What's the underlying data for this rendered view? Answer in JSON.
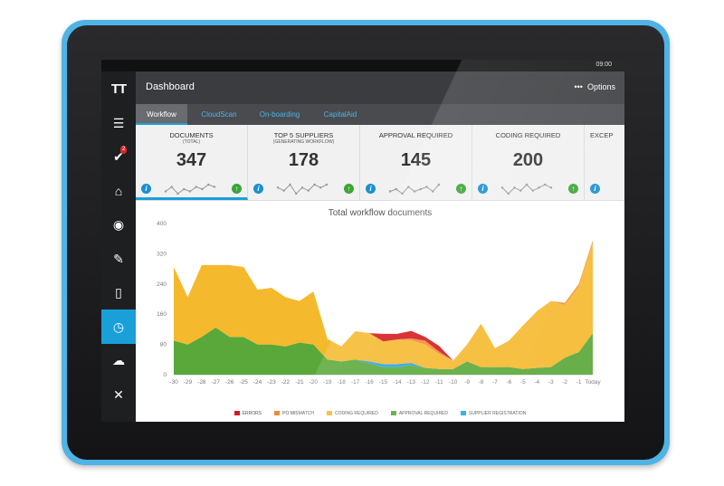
{
  "status": {
    "time": "09:00"
  },
  "header": {
    "title": "Dashboard",
    "options_label": "Options",
    "menu_glyph": "•••"
  },
  "sidebar": {
    "logo": "TT",
    "notification_count": "2",
    "items": [
      {
        "icon": "rss-icon",
        "glyph": "☰"
      },
      {
        "icon": "tasks-check-icon",
        "glyph": "✔"
      },
      {
        "icon": "home-icon",
        "glyph": "⌂"
      },
      {
        "icon": "globe-icon",
        "glyph": "◉"
      },
      {
        "icon": "pencil-icon",
        "glyph": "✎"
      },
      {
        "icon": "document-icon",
        "glyph": "▯"
      },
      {
        "icon": "dashboard-gauge-icon",
        "glyph": "◷"
      },
      {
        "icon": "cloud-upload-icon",
        "glyph": "☁"
      },
      {
        "icon": "tools-icon",
        "glyph": "✕"
      }
    ]
  },
  "tabs": [
    {
      "label": "Workflow",
      "active": true
    },
    {
      "label": "CloudScan",
      "active": false
    },
    {
      "label": "On-boarding",
      "active": false
    },
    {
      "label": "CapitalAid",
      "active": false
    }
  ],
  "kpis": [
    {
      "label": "DOCUMENTS",
      "sub": "(TOTAL)",
      "value": "347",
      "spark": [
        4,
        6,
        3,
        5,
        4,
        6,
        5,
        7,
        6
      ]
    },
    {
      "label": "TOP 5 SUPPLIERS",
      "sub": "(GENERATING WORKFLOW)",
      "value": "178",
      "spark": [
        5,
        4,
        6,
        3,
        5,
        4,
        6,
        5,
        6
      ]
    },
    {
      "label": "APPROVAL REQUIRED",
      "sub": "",
      "value": "145",
      "spark": [
        4,
        5,
        3,
        6,
        4,
        5,
        6,
        4,
        7
      ]
    },
    {
      "label": "CODING REQUIRED",
      "sub": "",
      "value": "200",
      "spark": [
        5,
        3,
        5,
        4,
        6,
        4,
        5,
        6,
        5
      ]
    },
    {
      "label": "EXCEP",
      "sub": "",
      "value": "",
      "spark": []
    }
  ],
  "icons": {
    "info": "i",
    "up": "↑"
  },
  "chart_data": {
    "type": "area",
    "title": "Total workflow documents",
    "x": [
      "-30",
      "-29",
      "-28",
      "-27",
      "-26",
      "-25",
      "-24",
      "-23",
      "-22",
      "-21",
      "-20",
      "-19",
      "-18",
      "-17",
      "-16",
      "-15",
      "-14",
      "-13",
      "-12",
      "-11",
      "-10",
      "-9",
      "-8",
      "-7",
      "-6",
      "-5",
      "-4",
      "-3",
      "-2",
      "-1",
      "Today"
    ],
    "ylim": [
      0,
      400
    ],
    "yticks": [
      0,
      80,
      160,
      240,
      320,
      400
    ],
    "stacked": true,
    "series": [
      {
        "name": "APPROVAL REQUIRED",
        "color": "#5aa83a",
        "values": [
          90,
          80,
          100,
          125,
          100,
          100,
          80,
          80,
          75,
          85,
          80,
          40,
          35,
          40,
          30,
          20,
          20,
          25,
          18,
          15,
          15,
          35,
          20,
          20,
          20,
          15,
          18,
          20,
          45,
          60,
          110
        ]
      },
      {
        "name": "SUPPLIER REGISTRATION",
        "color": "#27a5e5",
        "values": [
          0,
          0,
          0,
          0,
          0,
          0,
          0,
          0,
          0,
          0,
          0,
          0,
          0,
          0,
          5,
          8,
          8,
          6,
          0,
          0,
          0,
          0,
          0,
          0,
          0,
          0,
          0,
          0,
          0,
          0,
          0
        ]
      },
      {
        "name": "CODING REQUIRED",
        "color": "#f5b92e",
        "values": [
          195,
          125,
          190,
          165,
          190,
          185,
          145,
          150,
          130,
          110,
          140,
          55,
          40,
          75,
          75,
          60,
          65,
          60,
          62,
          40,
          22,
          45,
          115,
          50,
          70,
          115,
          150,
          175,
          140,
          175,
          240
        ]
      },
      {
        "name": "PO MISMATCH",
        "color": "#f08a36",
        "values": [
          0,
          0,
          0,
          0,
          0,
          0,
          0,
          0,
          0,
          0,
          0,
          0,
          0,
          0,
          0,
          0,
          0,
          5,
          10,
          6,
          0,
          0,
          0,
          0,
          0,
          0,
          0,
          0,
          5,
          5,
          5
        ]
      },
      {
        "name": "ERRORS",
        "color": "#d4181e",
        "values": [
          0,
          0,
          0,
          0,
          0,
          0,
          0,
          0,
          0,
          0,
          0,
          0,
          0,
          0,
          0,
          20,
          15,
          20,
          10,
          15,
          0,
          0,
          0,
          0,
          0,
          0,
          0,
          0,
          0,
          0,
          0
        ]
      }
    ],
    "legend_order": [
      "ERRORS",
      "PO MISMATCH",
      "CODING REQUIRED",
      "APPROVAL REQUIRED",
      "SUPPLIER REGISTRATION"
    ],
    "legend_colors": {
      "ERRORS": "#d4181e",
      "PO MISMATCH": "#f08a36",
      "CODING REQUIRED": "#f5b92e",
      "APPROVAL REQUIRED": "#5aa83a",
      "SUPPLIER REGISTRATION": "#27a5e5"
    },
    "grid": false,
    "legend_position": "bottom"
  }
}
